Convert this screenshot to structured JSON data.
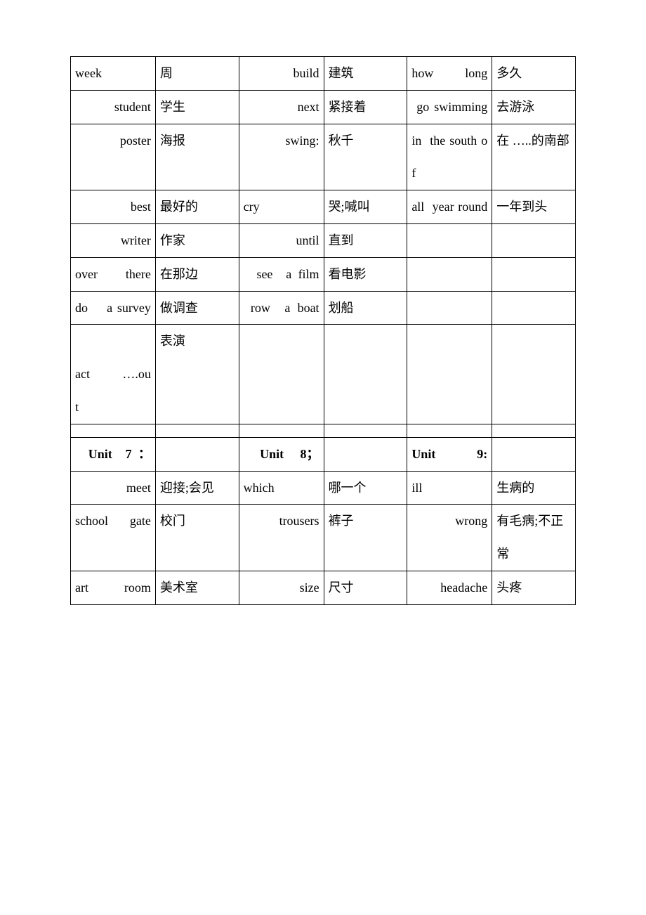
{
  "rows": [
    {
      "c1": "week",
      "c2": "周",
      "c3": " build",
      "c4": "建筑",
      "c5": "how long",
      "c6": "多久"
    },
    {
      "c1": " student",
      "c2": "学生",
      "c3": " next",
      "c4": "紧接着",
      "c5": " go swimming",
      "c6": "去游泳"
    },
    {
      "c1": " poster",
      "c2": "海报",
      "c3": " swing:",
      "c4": "秋千",
      "c5": "in  the south of",
      "c6": "在 …..的南部"
    },
    {
      "c1": " best",
      "c2": "最好的",
      "c3": "cry",
      "c4": "哭;喊叫",
      "c5": "all  year round",
      "c6": "一年到头"
    },
    {
      "c1": " writer",
      "c2": "作家",
      "c3": " until",
      "c4": "直到",
      "c5": "",
      "c6": ""
    },
    {
      "c1": "over there",
      "c2": "在那边",
      "c3": "  see  a film",
      "c4": "看电影",
      "c5": "",
      "c6": ""
    },
    {
      "c1": "do    a survey",
      "c2": "做调查",
      "c3": " row  a boat",
      "c4": "划船",
      "c5": "",
      "c6": ""
    },
    {
      "c1": "\nact ….ou\nt",
      "c2": "表演",
      "c3": "",
      "c4": "",
      "c5": "",
      "c6": ""
    }
  ],
  "unitRow": {
    "c1": "  Unit  7 ：",
    "c2": "",
    "c3": "  Unit  8；",
    "c4": "",
    "c5": "Unit 9:",
    "c6": ""
  },
  "rows2": [
    {
      "c1": " meet",
      "c2": "迎接;会见",
      "c3": "which",
      "c4": "哪一个",
      "c5": "ill",
      "c6": "生病的"
    },
    {
      "c1": "school gate",
      "c2": "校门",
      "c3": " trousers",
      "c4": "裤子",
      "c5": " wrong",
      "c6": "有毛病;不正常"
    },
    {
      "c1": "art room",
      "c2": "美术室",
      "c3": " size",
      "c4": "尺寸",
      "c5": " headache",
      "c6": "头疼"
    }
  ],
  "colors": {
    "background": "#ffffff",
    "border": "#000000",
    "text": "#000000"
  },
  "fontsize": 18
}
